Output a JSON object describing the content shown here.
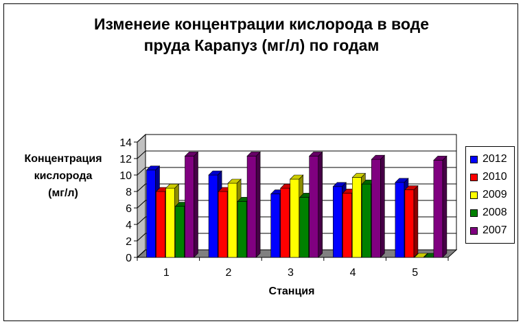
{
  "chart_data": {
    "type": "bar",
    "title": "Изменеие концентрации кислорода в воде пруда Карапуз (мг/л) по годам",
    "title_lines": [
      "Изменеие концентрации кислорода в воде",
      "пруда Карапуз (мг/л) по годам"
    ],
    "ylabel": "Концентрация кислорода (мг/л)",
    "ylabel_lines": [
      "Концентрация",
      "кислорода",
      "(мг/л)"
    ],
    "xlabel": "Станция",
    "categories": [
      "1",
      "2",
      "3",
      "4",
      "5"
    ],
    "ylim": [
      0,
      14
    ],
    "yticks": [
      0,
      2,
      4,
      6,
      8,
      10,
      12,
      14
    ],
    "grid": true,
    "legend_position": "right",
    "series": [
      {
        "name": "2012",
        "color": "#0000ff",
        "values": [
          10.6,
          10.0,
          7.7,
          8.6,
          9.1
        ]
      },
      {
        "name": "2010",
        "color": "#ff0000",
        "values": [
          8.0,
          8.0,
          8.4,
          7.8,
          8.2
        ]
      },
      {
        "name": "2009",
        "color": "#ffff00",
        "values": [
          8.4,
          9.0,
          9.5,
          9.7,
          0.0
        ]
      },
      {
        "name": "2008",
        "color": "#008000",
        "values": [
          6.2,
          6.8,
          7.3,
          8.9,
          0.0
        ]
      },
      {
        "name": "2007",
        "color": "#800080",
        "values": [
          12.3,
          12.3,
          12.3,
          11.9,
          11.8
        ]
      }
    ]
  }
}
